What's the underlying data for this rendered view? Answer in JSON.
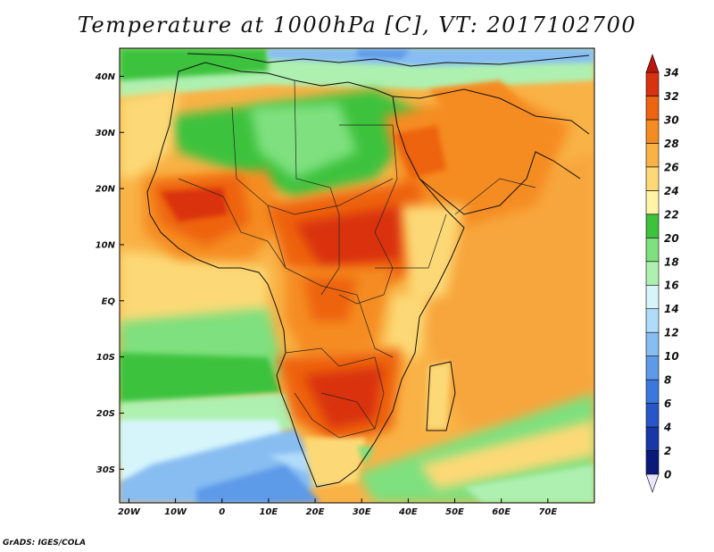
{
  "title": "Temperature at 1000hPa [C], VT: 2017102700",
  "credit": "GrADS: IGES/COLA",
  "map": {
    "lon_range": [
      -22,
      80
    ],
    "lat_range": [
      -36,
      45
    ],
    "x_ticks": [
      {
        "lon": -20,
        "label": "20W"
      },
      {
        "lon": -10,
        "label": "10W"
      },
      {
        "lon": 0,
        "label": "0"
      },
      {
        "lon": 10,
        "label": "10E"
      },
      {
        "lon": 20,
        "label": "20E"
      },
      {
        "lon": 30,
        "label": "30E"
      },
      {
        "lon": 40,
        "label": "40E"
      },
      {
        "lon": 50,
        "label": "50E"
      },
      {
        "lon": 60,
        "label": "60E"
      },
      {
        "lon": 70,
        "label": "70E"
      }
    ],
    "y_ticks": [
      {
        "lat": 40,
        "label": "40N"
      },
      {
        "lat": 30,
        "label": "30N"
      },
      {
        "lat": 20,
        "label": "20N"
      },
      {
        "lat": 10,
        "label": "10N"
      },
      {
        "lat": 0,
        "label": "EQ"
      },
      {
        "lat": -10,
        "label": "10S"
      },
      {
        "lat": -20,
        "label": "20S"
      },
      {
        "lat": -30,
        "label": "30S"
      }
    ]
  },
  "colorbar": {
    "levels": [
      {
        "value": 0,
        "color": "#f2eeff"
      },
      {
        "value": 2,
        "color": "#0a1a78"
      },
      {
        "value": 4,
        "color": "#1838a8"
      },
      {
        "value": 6,
        "color": "#2856c8"
      },
      {
        "value": 8,
        "color": "#3a78de"
      },
      {
        "value": 10,
        "color": "#5d9ae8"
      },
      {
        "value": 12,
        "color": "#88bdf2"
      },
      {
        "value": 14,
        "color": "#b0dcfa"
      },
      {
        "value": 16,
        "color": "#d6f5fb"
      },
      {
        "value": 18,
        "color": "#aef0b0"
      },
      {
        "value": 20,
        "color": "#7ee07e"
      },
      {
        "value": 22,
        "color": "#3cc23c"
      },
      {
        "value": 24,
        "color": "#fff3a8"
      },
      {
        "value": 26,
        "color": "#fcd976"
      },
      {
        "value": 28,
        "color": "#f9b246"
      },
      {
        "value": 30,
        "color": "#f58c22"
      },
      {
        "value": 32,
        "color": "#ee6410"
      },
      {
        "value": 34,
        "color": "#d93210"
      }
    ],
    "over_color": "#b8160e",
    "under_color": "#e9e5ff"
  }
}
